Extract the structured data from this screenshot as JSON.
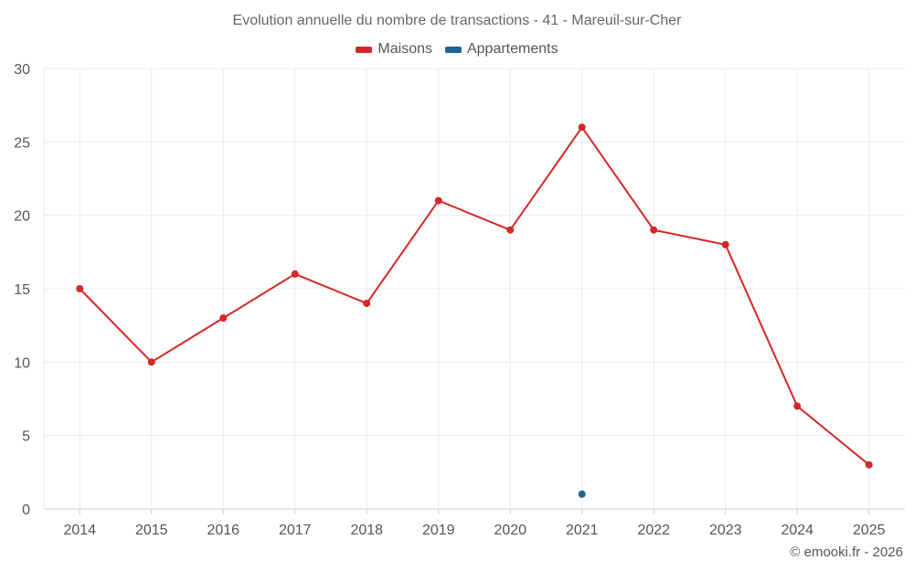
{
  "chart_data": {
    "type": "line",
    "title": "Evolution annuelle du nombre de transactions - 41 - Mareuil-sur-Cher",
    "categories": [
      "2014",
      "2015",
      "2016",
      "2017",
      "2018",
      "2019",
      "2020",
      "2021",
      "2022",
      "2023",
      "2024",
      "2025"
    ],
    "series": [
      {
        "name": "Maisons",
        "color": "#d62728",
        "values": [
          15,
          10,
          13,
          16,
          14,
          21,
          19,
          26,
          19,
          18,
          7,
          3
        ]
      },
      {
        "name": "Appartements",
        "color": "#1a6496",
        "values": [
          null,
          null,
          null,
          null,
          null,
          null,
          null,
          1,
          null,
          null,
          null,
          null
        ]
      }
    ],
    "ylim": [
      0,
      30
    ],
    "yticks": [
      "0",
      "5",
      "10",
      "15",
      "20",
      "25",
      "30"
    ],
    "xlabel": "",
    "ylabel": "",
    "grid": true,
    "legend": "top-center"
  },
  "credit": "© emooki.fr - 2026"
}
